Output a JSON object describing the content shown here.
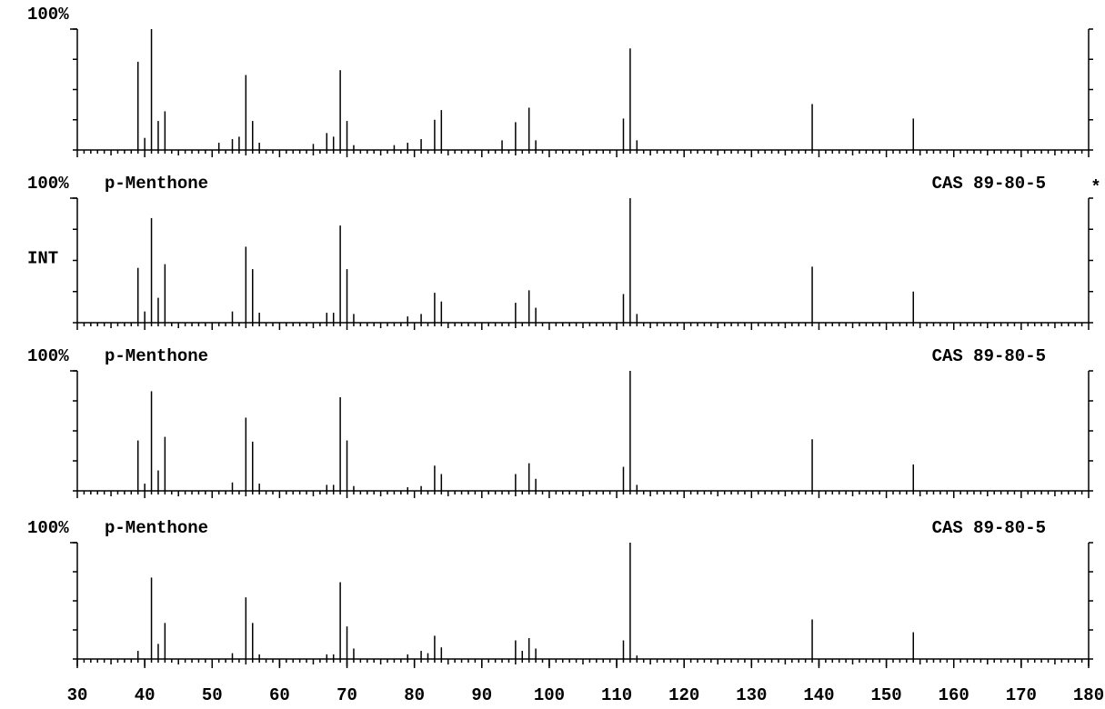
{
  "chart_data": [
    {
      "type": "bar",
      "xlim": [
        30,
        180
      ],
      "ylim": [
        0,
        100
      ],
      "yticks": [
        {
          "value": 100,
          "label": "100%"
        }
      ],
      "color": "#000000",
      "x": [
        39,
        40,
        41,
        42,
        43,
        51,
        53,
        54,
        55,
        56,
        57,
        65,
        67,
        68,
        69,
        70,
        71,
        77,
        79,
        81,
        83,
        84,
        93,
        95,
        97,
        98,
        111,
        112,
        113,
        139,
        154
      ],
      "values": [
        73,
        10,
        100,
        24,
        32,
        6,
        9,
        11,
        62,
        24,
        6,
        5,
        14,
        11,
        66,
        24,
        4,
        4,
        6,
        9,
        25,
        33,
        8,
        23,
        35,
        8,
        26,
        84,
        8,
        38,
        26
      ]
    },
    {
      "type": "bar",
      "title": "p-Menthone",
      "annotations": [
        "CAS 89-80-5",
        "*"
      ],
      "ylabel": "INT",
      "xlim": [
        30,
        180
      ],
      "ylim": [
        0,
        100
      ],
      "yticks": [
        {
          "value": 100,
          "label": "100%"
        }
      ],
      "color": "#000000",
      "x": [
        39,
        40,
        41,
        42,
        43,
        53,
        55,
        56,
        57,
        67,
        68,
        69,
        70,
        71,
        79,
        81,
        83,
        84,
        95,
        97,
        98,
        111,
        112,
        113,
        139,
        154
      ],
      "values": [
        44,
        9,
        84,
        20,
        47,
        9,
        61,
        43,
        8,
        8,
        8,
        78,
        43,
        7,
        5,
        7,
        24,
        17,
        16,
        26,
        12,
        23,
        100,
        7,
        45,
        25
      ]
    },
    {
      "type": "bar",
      "title": "p-Menthone",
      "annotations": [
        "CAS 89-80-5"
      ],
      "xlim": [
        30,
        180
      ],
      "ylim": [
        0,
        100
      ],
      "yticks": [
        {
          "value": 100,
          "label": "100%"
        }
      ],
      "color": "#000000",
      "x": [
        39,
        40,
        41,
        42,
        43,
        53,
        55,
        56,
        57,
        67,
        68,
        69,
        70,
        71,
        79,
        81,
        83,
        84,
        95,
        97,
        98,
        111,
        112,
        113,
        139,
        154
      ],
      "values": [
        42,
        6,
        83,
        17,
        45,
        7,
        61,
        41,
        6,
        5,
        5,
        78,
        42,
        4,
        3,
        4,
        21,
        14,
        14,
        23,
        10,
        20,
        100,
        5,
        43,
        22
      ]
    },
    {
      "type": "bar",
      "title": "p-Menthone",
      "annotations": [
        "CAS 89-80-5"
      ],
      "xlim": [
        30,
        180
      ],
      "ylim": [
        0,
        100
      ],
      "yticks": [
        {
          "value": 100,
          "label": "100%"
        }
      ],
      "color": "#000000",
      "xticks": [
        30,
        40,
        50,
        60,
        70,
        80,
        90,
        100,
        110,
        120,
        130,
        140,
        150,
        160,
        170,
        180
      ],
      "x": [
        39,
        41,
        42,
        43,
        53,
        55,
        56,
        57,
        67,
        68,
        69,
        70,
        71,
        79,
        81,
        82,
        83,
        84,
        95,
        96,
        97,
        98,
        111,
        112,
        113,
        139,
        154
      ],
      "values": [
        7,
        70,
        13,
        31,
        5,
        53,
        31,
        4,
        4,
        4,
        66,
        28,
        9,
        4,
        7,
        5,
        20,
        10,
        16,
        7,
        18,
        9,
        16,
        100,
        3,
        34,
        23
      ]
    }
  ]
}
